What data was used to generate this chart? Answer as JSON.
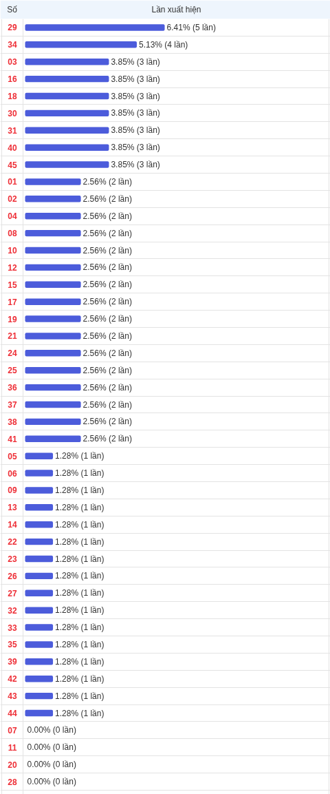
{
  "chart_data": {
    "type": "bar",
    "orientation": "horizontal",
    "xlabel": "Lần xuất hiện",
    "ylabel": "Số",
    "categories": [
      "29",
      "34",
      "03",
      "16",
      "18",
      "30",
      "31",
      "40",
      "45",
      "01",
      "02",
      "04",
      "08",
      "10",
      "12",
      "15",
      "17",
      "19",
      "21",
      "24",
      "25",
      "36",
      "37",
      "38",
      "41",
      "05",
      "06",
      "09",
      "13",
      "14",
      "22",
      "23",
      "26",
      "27",
      "32",
      "33",
      "35",
      "39",
      "42",
      "43",
      "44",
      "07",
      "11",
      "20",
      "28"
    ],
    "values": [
      6.41,
      5.13,
      3.85,
      3.85,
      3.85,
      3.85,
      3.85,
      3.85,
      3.85,
      2.56,
      2.56,
      2.56,
      2.56,
      2.56,
      2.56,
      2.56,
      2.56,
      2.56,
      2.56,
      2.56,
      2.56,
      2.56,
      2.56,
      2.56,
      2.56,
      1.28,
      1.28,
      1.28,
      1.28,
      1.28,
      1.28,
      1.28,
      1.28,
      1.28,
      1.28,
      1.28,
      1.28,
      1.28,
      1.28,
      1.28,
      1.28,
      0,
      0,
      0,
      0
    ],
    "value_labels": [
      "6.41% (5 lần)",
      "5.13% (4 lần)",
      "3.85% (3 lần)",
      "3.85% (3 lần)",
      "3.85% (3 lần)",
      "3.85% (3 lần)",
      "3.85% (3 lần)",
      "3.85% (3 lần)",
      "3.85% (3 lần)",
      "2.56% (2 lần)",
      "2.56% (2 lần)",
      "2.56% (2 lần)",
      "2.56% (2 lần)",
      "2.56% (2 lần)",
      "2.56% (2 lần)",
      "2.56% (2 lần)",
      "2.56% (2 lần)",
      "2.56% (2 lần)",
      "2.56% (2 lần)",
      "2.56% (2 lần)",
      "2.56% (2 lần)",
      "2.56% (2 lần)",
      "2.56% (2 lần)",
      "2.56% (2 lần)",
      "2.56% (2 lần)",
      "1.28% (1 lần)",
      "1.28% (1 lần)",
      "1.28% (1 lần)",
      "1.28% (1 lần)",
      "1.28% (1 lần)",
      "1.28% (1 lần)",
      "1.28% (1 lần)",
      "1.28% (1 lần)",
      "1.28% (1 lần)",
      "1.28% (1 lần)",
      "1.28% (1 lần)",
      "1.28% (1 lần)",
      "1.28% (1 lần)",
      "1.28% (1 lần)",
      "1.28% (1 lần)",
      "1.28% (1 lần)",
      "0.00% (0 lần)",
      "0.00% (0 lần)",
      "0.00% (0 lần)",
      "0.00% (0 lần)"
    ],
    "color": "#4c5cdb",
    "grid": "y"
  }
}
